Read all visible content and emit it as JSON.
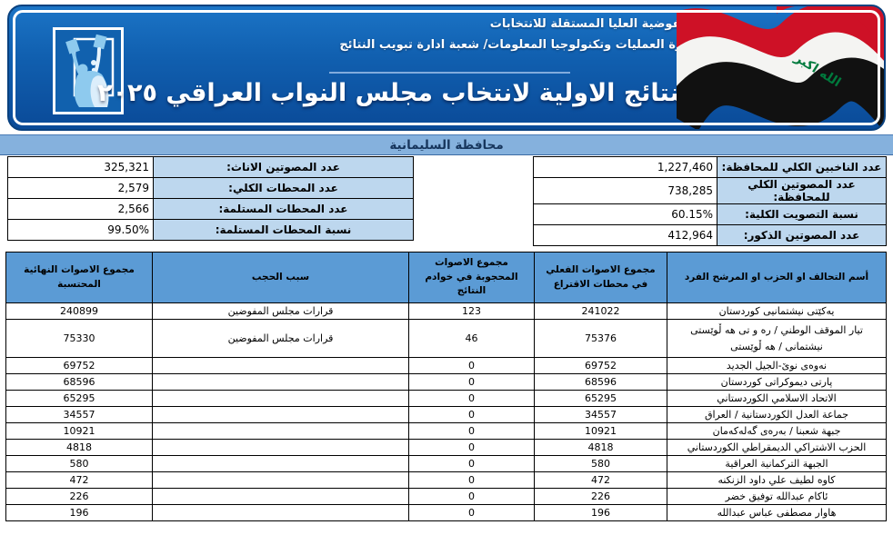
{
  "header": {
    "org_line1": "المفوضية العليا المستقلة للانتخابات",
    "org_line2": "دائرة العمليات وتكنولوجيا المعلومات/ شعبة ادارة تبويب النتائج",
    "title": "النتائج الاولية لانتخاب مجلس النواب العراقي ٢٠٢٥",
    "logo_icon": "ihec-ballot-logo",
    "flag_icon": "iraq-flag-icon",
    "flag_text": "الله اكبر"
  },
  "governorate_bar": {
    "title": "محافظة السليمانية"
  },
  "summary": {
    "right": [
      {
        "label": "عدد الناخبين الكلي للمحافظة:",
        "value": "1,227,460"
      },
      {
        "label": "عدد المصوتين الكلي للمحافظة:",
        "value": "738,285"
      },
      {
        "label": "نسبة التصويت الكلية:",
        "value": "60.15%"
      },
      {
        "label": "عدد المصوتين الذكور:",
        "value": "412,964"
      }
    ],
    "left": [
      {
        "label": "عدد المصوتين الاناث:",
        "value": "325,321"
      },
      {
        "label": "عدد المحطات الكلي:",
        "value": "2,579"
      },
      {
        "label": "عدد المحطات المستلمة:",
        "value": "2,566"
      },
      {
        "label": "نسبة المحطات المستلمة:",
        "value": "99.50%"
      }
    ]
  },
  "results_table": {
    "headers": {
      "name": "أسم التحالف او الحزب او المرشح الفرد",
      "actual": "مجموع الاصوات الفعلي في محطات الاقتراع",
      "withheld": "مجموع الاصوات المحجوبة في خوادم النتائج",
      "reason": "سبب الحجب",
      "final": "مجموع الاصوات النهائية المحتسبة"
    },
    "rows": [
      {
        "name": "یەكێتی نیشتمانیی كوردستان",
        "actual": "241022",
        "withheld": "123",
        "reason": "قرارات مجلس المفوضين",
        "final": "240899"
      },
      {
        "name": "تيار الموقف الوطني / ره و تی هه ڵوێستی نیشتمانی / هه ڵوێستی",
        "actual": "75376",
        "withheld": "46",
        "reason": "قرارات مجلس المفوضين",
        "final": "75330"
      },
      {
        "name": "نەوەی نوێ-الجيل الجديد",
        "actual": "69752",
        "withheld": "0",
        "reason": "",
        "final": "69752"
      },
      {
        "name": "پارتی دیموكراتی كوردستان",
        "actual": "68596",
        "withheld": "0",
        "reason": "",
        "final": "68596"
      },
      {
        "name": "الاتحاد الاسلامي الكوردستاني",
        "actual": "65295",
        "withheld": "0",
        "reason": "",
        "final": "65295"
      },
      {
        "name": "جماعة العدل الكوردستانية / العراق",
        "actual": "34557",
        "withheld": "0",
        "reason": "",
        "final": "34557"
      },
      {
        "name": "جبهة شعبنا / بەرەی گەلەكەمان",
        "actual": "10921",
        "withheld": "0",
        "reason": "",
        "final": "10921"
      },
      {
        "name": "الحزب الاشتراكي الديمقراطي الكوردستاني",
        "actual": "4818",
        "withheld": "0",
        "reason": "",
        "final": "4818"
      },
      {
        "name": "الجبهة التركمانية العراقية",
        "actual": "580",
        "withheld": "0",
        "reason": "",
        "final": "580"
      },
      {
        "name": "كاوه لطيف علي داود الزنكنه",
        "actual": "472",
        "withheld": "0",
        "reason": "",
        "final": "472"
      },
      {
        "name": "ئاكام عبدالله توفيق خضر",
        "actual": "226",
        "withheld": "0",
        "reason": "",
        "final": "226"
      },
      {
        "name": "هاوار مصطفى عباس عبدالله",
        "actual": "196",
        "withheld": "0",
        "reason": "",
        "final": "196"
      }
    ]
  },
  "colors": {
    "banner_blue": "#0f5aab",
    "gov_bar_blue": "#85b1dd",
    "table_header_blue": "#5b9bd5",
    "label_cell_blue": "#bdd7ee",
    "flag_red": "#ce1126",
    "flag_green": "#007a3d",
    "flag_black": "#111111"
  }
}
